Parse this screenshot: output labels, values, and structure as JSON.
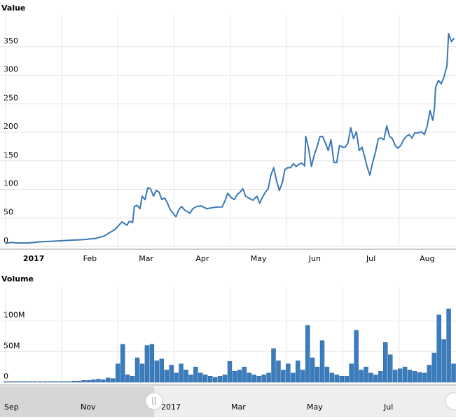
{
  "chart_data": [
    {
      "type": "line",
      "title": "Value",
      "color": "#3a78b5",
      "x": [
        0,
        0.1,
        0.2,
        0.4,
        0.6,
        0.8,
        1.0,
        1.2,
        1.4,
        1.6,
        1.75,
        1.85,
        1.95,
        2.07,
        2.16,
        2.2,
        2.26,
        2.29,
        2.34,
        2.39,
        2.43,
        2.48,
        2.53,
        2.58,
        2.63,
        2.68,
        2.73,
        2.78,
        2.83,
        2.88,
        2.93,
        2.98,
        3.03,
        3.08,
        3.13,
        3.18,
        3.23,
        3.28,
        3.33,
        3.4,
        3.48,
        3.58,
        3.68,
        3.78,
        3.85,
        3.9,
        3.95,
        4.02,
        4.07,
        4.12,
        4.17,
        4.22,
        4.27,
        4.32,
        4.4,
        4.47,
        4.52,
        4.57,
        4.62,
        4.67,
        4.72,
        4.77,
        4.82,
        4.87,
        4.92,
        4.97,
        5.02,
        5.07,
        5.12,
        5.17,
        5.22,
        5.27,
        5.32,
        5.34,
        5.39,
        5.44,
        5.49,
        5.54,
        5.59,
        5.64,
        5.69,
        5.74,
        5.79,
        5.84,
        5.89,
        5.94,
        5.99,
        6.04,
        6.09,
        6.14,
        6.19,
        6.24,
        6.29,
        6.34,
        6.39,
        6.43,
        6.48,
        6.53,
        6.58,
        6.63,
        6.68,
        6.73,
        6.78,
        6.83,
        6.88,
        6.93,
        6.98,
        7.03,
        7.08,
        7.13,
        7.18,
        7.23,
        7.28,
        7.35,
        7.4,
        7.45,
        7.5,
        7.55,
        7.6,
        7.63,
        7.65,
        7.7,
        7.75,
        7.8,
        7.85,
        7.88,
        7.93,
        7.98
      ],
      "values": [
        5,
        7,
        6,
        6,
        8,
        9,
        10,
        11,
        12,
        14,
        18,
        24,
        30,
        43,
        37,
        44,
        42,
        70,
        72,
        66,
        88,
        82,
        103,
        101,
        88,
        98,
        95,
        82,
        85,
        76,
        64,
        58,
        52,
        64,
        70,
        64,
        61,
        58,
        66,
        70,
        71,
        66,
        68,
        69,
        69,
        79,
        93,
        85,
        82,
        91,
        95,
        101,
        88,
        85,
        81,
        88,
        76,
        86,
        95,
        101,
        125,
        138,
        115,
        98,
        111,
        135,
        138,
        138,
        145,
        140,
        144,
        146,
        141,
        193,
        172,
        140,
        160,
        174,
        192,
        193,
        181,
        168,
        187,
        147,
        147,
        177,
        174,
        174,
        181,
        208,
        189,
        201,
        168,
        174,
        156,
        140,
        125,
        147,
        165,
        189,
        190,
        187,
        211,
        193,
        189,
        177,
        172,
        177,
        187,
        193,
        196,
        190,
        199,
        199,
        201,
        196,
        211,
        238,
        221,
        242,
        279,
        291,
        285,
        297,
        316,
        373,
        359,
        365
      ],
      "xlim": [
        0,
        8
      ],
      "xticks": [
        {
          "value": 0,
          "label": "2017"
        },
        {
          "value": 1,
          "label": "Feb"
        },
        {
          "value": 2,
          "label": "Mar"
        },
        {
          "value": 3,
          "label": "Apr"
        },
        {
          "value": 4,
          "label": "May"
        },
        {
          "value": 5,
          "label": "Jun"
        },
        {
          "value": 6,
          "label": "Jul"
        },
        {
          "value": 7,
          "label": "Aug"
        }
      ],
      "ylim": [
        0,
        400
      ],
      "yticks": [
        0,
        50,
        100,
        150,
        200,
        250,
        300,
        350
      ],
      "grid": true
    },
    {
      "type": "bar",
      "title": "Volume",
      "color": "#3a7dbf",
      "categories": [
        null,
        null,
        null,
        null,
        null,
        null,
        null,
        null,
        null,
        null,
        null,
        null,
        null,
        null,
        null,
        null,
        null,
        null,
        null,
        null,
        null,
        null,
        null,
        null,
        null,
        null,
        null,
        null,
        null,
        null,
        null,
        null,
        null,
        null,
        null,
        null,
        null,
        null,
        null,
        null,
        null,
        null,
        null,
        null,
        null,
        null,
        null,
        null,
        null,
        null,
        null,
        null,
        null,
        null,
        null,
        null,
        null,
        null,
        null,
        null,
        null,
        null,
        null,
        null,
        null,
        null,
        null,
        null,
        null,
        null,
        null,
        null,
        null,
        null,
        null,
        null,
        null,
        null,
        null,
        null,
        null,
        null,
        null,
        null,
        null,
        null,
        null,
        null,
        null,
        null,
        null,
        null,
        null
      ],
      "values": [
        1000000,
        1000000,
        1000000,
        1000000,
        1000000,
        1000000,
        1000000,
        1000000,
        1000000,
        1000000,
        1000000,
        1000000,
        1000000,
        1000000,
        2000000,
        2000000,
        3000000,
        3000000,
        4000000,
        5000000,
        4000000,
        7000000,
        6000000,
        30000000,
        62000000,
        12000000,
        10000000,
        40000000,
        30000000,
        60000000,
        62000000,
        35000000,
        38000000,
        20000000,
        28000000,
        15000000,
        30000000,
        20000000,
        12000000,
        25000000,
        15000000,
        12000000,
        10000000,
        8000000,
        10000000,
        12000000,
        34000000,
        18000000,
        20000000,
        25000000,
        15000000,
        12000000,
        10000000,
        12000000,
        15000000,
        55000000,
        35000000,
        20000000,
        30000000,
        15000000,
        35000000,
        20000000,
        93000000,
        40000000,
        25000000,
        68000000,
        25000000,
        15000000,
        12000000,
        10000000,
        10000000,
        30000000,
        85000000,
        20000000,
        25000000,
        15000000,
        12000000,
        18000000,
        65000000,
        45000000,
        20000000,
        22000000,
        25000000,
        20000000,
        18000000,
        16000000,
        15000000,
        28000000,
        48000000,
        110000000,
        70000000,
        120000000,
        30000000
      ],
      "ylim": [
        0,
        150000000
      ],
      "yticks": [
        0,
        {
          "value": 50000000,
          "label": "50M"
        },
        {
          "value": 100000000,
          "label": "100M"
        }
      ],
      "grid": true
    }
  ],
  "navigator": {
    "labels": [
      "Sep",
      "Nov",
      "2017",
      "Mar",
      "May",
      "Jul"
    ]
  }
}
